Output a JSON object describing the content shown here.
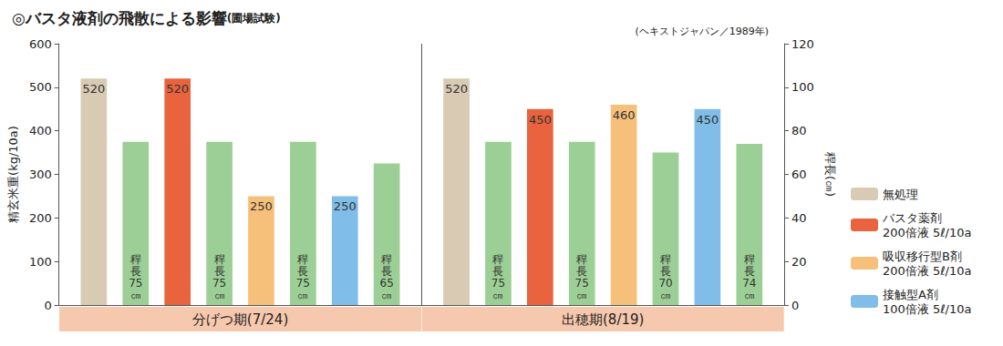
{
  "chart_data": {
    "type": "bar",
    "title": "◎バスタ液剤の飛散による影響",
    "subtitle": "(圃場試験)",
    "source": "(ヘキストジャパン／1989年)",
    "y_label": "精玄米重(kg/10a)",
    "y2_label": "稈長(㎝)",
    "categories": [
      "分げつ期(7/24)",
      "出穂期(8/19)"
    ],
    "series": [
      {
        "name": "無処理",
        "color": "#d8cab3",
        "values": [
          520,
          520
        ]
      },
      {
        "name": "稈長",
        "axis": "y2",
        "color": "#9ccf95",
        "values": [
          75,
          75
        ],
        "value_labels": [
          "稈長75㎝",
          "稈長75㎝"
        ]
      },
      {
        "name": "バスタ薬剤 200倍液 5ℓ/10a",
        "color": "#e8633e",
        "values": [
          520,
          450
        ]
      },
      {
        "name": "稈長",
        "axis": "y2",
        "color": "#9ccf95",
        "values": [
          75,
          75
        ],
        "value_labels": [
          "稈長75㎝",
          "稈長75㎝"
        ]
      },
      {
        "name": "吸収移行型B剤 200倍液 5ℓ/10a",
        "color": "#f7c07a",
        "values": [
          250,
          460
        ]
      },
      {
        "name": "稈長",
        "axis": "y2",
        "color": "#9ccf95",
        "values": [
          75,
          70
        ],
        "value_labels": [
          "稈長75㎝",
          "稈長70㎝"
        ]
      },
      {
        "name": "接触型A剤 100倍液 5ℓ/10a",
        "color": "#80bde8",
        "values": [
          250,
          450
        ]
      },
      {
        "name": "稈長",
        "axis": "y2",
        "color": "#9ccf95",
        "values": [
          65,
          74
        ],
        "value_labels": [
          "稈長65㎝",
          "稈長74㎝"
        ]
      }
    ],
    "ylim": [
      0,
      600
    ],
    "yticks": [
      0,
      100,
      200,
      300,
      400,
      500,
      600
    ],
    "y2lim": [
      0,
      120
    ],
    "y2ticks": [
      0,
      20,
      40,
      60,
      80,
      100,
      120
    ],
    "grid": false,
    "legend": "right",
    "data_labels": true
  }
}
